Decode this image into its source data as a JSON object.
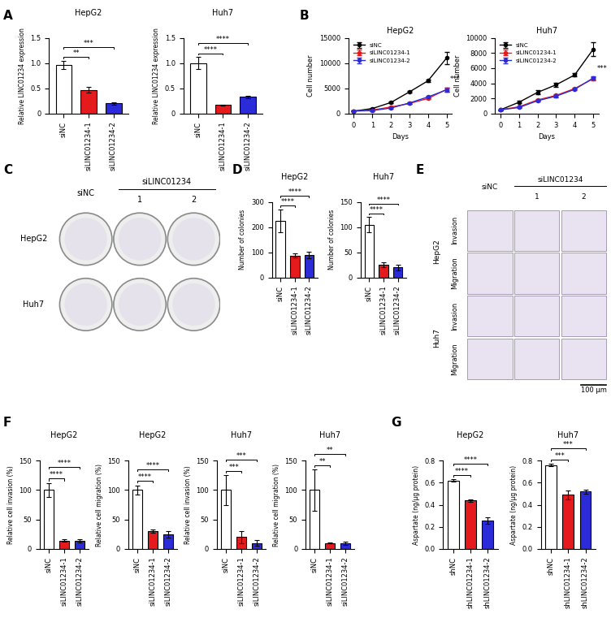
{
  "chart_data": [
    {
      "panel": "A",
      "charts": [
        {
          "type": "bar",
          "title": "HepG2",
          "y_label": "Relative LINC01234 expression",
          "categories": [
            "siNC",
            "siLINC01234-1",
            "siLINC01234-2"
          ],
          "values": [
            0.97,
            0.47,
            0.2
          ],
          "errors": [
            0.08,
            0.06,
            0.03
          ],
          "colors": [
            "#ffffff",
            "#e41a1c",
            "#2b2bd9"
          ],
          "ylim": [
            0,
            1.5
          ],
          "yticks": [
            0,
            0.5,
            {
              "value": 1,
              "label": "1.0"
            },
            1.5
          ],
          "comparisons": [
            {
              "groups": [
                "siNC",
                "siLINC01234-1"
              ],
              "label": "**"
            },
            {
              "groups": [
                "siNC",
                "siLINC01234-2"
              ],
              "label": "***"
            }
          ]
        },
        {
          "type": "bar",
          "title": "Huh7",
          "y_label": "Relative LINC01234 expression",
          "categories": [
            "siNC",
            "siLINC01234-1",
            "siLINC01234-2"
          ],
          "values": [
            1.0,
            0.17,
            0.33
          ],
          "errors": [
            0.12,
            0.01,
            0.02
          ],
          "colors": [
            "#ffffff",
            "#e41a1c",
            "#2b2bd9"
          ],
          "ylim": [
            0,
            1.5
          ],
          "yticks": [
            0,
            0.5,
            {
              "value": 1,
              "label": "1.0"
            },
            1.5
          ],
          "comparisons": [
            {
              "groups": [
                "siNC",
                "siLINC01234-1"
              ],
              "label": "****"
            },
            {
              "groups": [
                "siNC",
                "siLINC01234-2"
              ],
              "label": "****"
            }
          ]
        }
      ]
    },
    {
      "panel": "B",
      "charts": [
        {
          "type": "line",
          "title": "HepG2",
          "x_label": "Days",
          "y_label": "Cell number",
          "legend": "upper left",
          "x": [
            0,
            1,
            2,
            3,
            4,
            5
          ],
          "xlim": [
            -0.3,
            5.3
          ],
          "xticks": [
            0,
            1,
            2,
            3,
            4,
            5
          ],
          "ylim": [
            0,
            15000
          ],
          "yticks": [
            0,
            5000,
            10000,
            15000
          ],
          "series": [
            {
              "name": "siNC",
              "color": "#000000",
              "marker": "o",
              "values": [
                500,
                1000,
                2200,
                4300,
                6500,
                11000
              ],
              "errors": [
                50,
                100,
                150,
                200,
                300,
                1200
              ]
            },
            {
              "name": "siLINC01234-1",
              "color": "#e41a1c",
              "marker": "o",
              "values": [
                500,
                700,
                1300,
                2000,
                3000,
                4800
              ],
              "errors": [
                50,
                80,
                100,
                150,
                200,
                400
              ]
            },
            {
              "name": "siLINC01234-2",
              "color": "#2b2bd9",
              "marker": "o",
              "values": [
                500,
                600,
                1100,
                2100,
                3300,
                4700
              ],
              "errors": [
                50,
                80,
                100,
                150,
                200,
                400
              ]
            }
          ],
          "annotation": {
            "text": "***",
            "x": 5
          }
        },
        {
          "type": "line",
          "title": "Huh7",
          "x_label": "Days",
          "y_label": "Cell number",
          "legend": "upper left",
          "x": [
            0,
            1,
            2,
            3,
            4,
            5
          ],
          "xlim": [
            -0.3,
            5.3
          ],
          "xticks": [
            0,
            1,
            2,
            3,
            4,
            5
          ],
          "ylim": [
            0,
            10000
          ],
          "yticks": [
            0,
            2000,
            4000,
            6000,
            8000,
            10000
          ],
          "series": [
            {
              "name": "siNC",
              "color": "#000000",
              "marker": "o",
              "values": [
                500,
                1500,
                2800,
                3800,
                5100,
                8500
              ],
              "errors": [
                50,
                150,
                250,
                250,
                200,
                900
              ]
            },
            {
              "name": "siLINC01234-1",
              "color": "#e41a1c",
              "marker": "o",
              "values": [
                500,
                900,
                1800,
                2400,
                3300,
                4600
              ],
              "errors": [
                50,
                80,
                100,
                150,
                150,
                200
              ]
            },
            {
              "name": "siLINC01234-2",
              "color": "#2b2bd9",
              "marker": "o",
              "values": [
                500,
                800,
                1700,
                2300,
                3200,
                4700
              ],
              "errors": [
                50,
                80,
                100,
                150,
                150,
                200
              ]
            }
          ],
          "annotation": {
            "text": "***",
            "x": 5
          }
        }
      ]
    },
    {
      "panel": "C",
      "charts": [
        {
          "type": "image_grid",
          "kind": "plates",
          "row_labels": [
            "HepG2",
            "Huh7"
          ],
          "column_labels": [
            "siNC"
          ],
          "group_label": "siLINC01234",
          "group_sublabels": [
            "1",
            "2"
          ]
        }
      ]
    },
    {
      "panel": "D",
      "charts": [
        {
          "type": "bar",
          "title": "HepG2",
          "y_label": "Number of colonies",
          "categories": [
            "siNC",
            "siLINC01234-1",
            "siLINC01234-2"
          ],
          "values": [
            225,
            88,
            90
          ],
          "errors": [
            45,
            8,
            12
          ],
          "colors": [
            "#ffffff",
            "#e41a1c",
            "#2b2bd9"
          ],
          "ylim": [
            0,
            300
          ],
          "yticks": [
            0,
            100,
            200,
            300
          ],
          "comparisons": [
            {
              "groups": [
                "siNC",
                "siLINC01234-1"
              ],
              "label": "****"
            },
            {
              "groups": [
                "siNC",
                "siLINC01234-2"
              ],
              "label": "****"
            }
          ]
        },
        {
          "type": "bar",
          "title": "Huh7",
          "y_label": "Number of colonies",
          "categories": [
            "siNC",
            "siLINC01234-1",
            "siLINC01234-2"
          ],
          "values": [
            105,
            25,
            20
          ],
          "errors": [
            15,
            5,
            5
          ],
          "colors": [
            "#ffffff",
            "#e41a1c",
            "#2b2bd9"
          ],
          "ylim": [
            0,
            150
          ],
          "yticks": [
            0,
            50,
            100,
            150
          ],
          "comparisons": [
            {
              "groups": [
                "siNC",
                "siLINC01234-1"
              ],
              "label": "****"
            },
            {
              "groups": [
                "siNC",
                "siLINC01234-2"
              ],
              "label": "****"
            }
          ]
        }
      ]
    },
    {
      "panel": "E",
      "charts": [
        {
          "type": "image_grid",
          "kind": "micrographs",
          "row_groups": [
            {
              "label": "HepG2",
              "rows": [
                "Invasion",
                "Migration"
              ]
            },
            {
              "label": "Huh7",
              "rows": [
                "Invasion",
                "Migration"
              ]
            }
          ],
          "column_labels": [
            "siNC"
          ],
          "group_label": "siLINC01234",
          "group_sublabels": [
            "1",
            "2"
          ],
          "scale_bar": "100 µm"
        }
      ]
    },
    {
      "panel": "F",
      "charts": [
        {
          "type": "bar",
          "title": "HepG2",
          "y_label": "Relative cell invasion (%)",
          "categories": [
            "siNC",
            "siLINC01234-1",
            "siLINC01234-2"
          ],
          "values": [
            100,
            14,
            14
          ],
          "errors": [
            12,
            2,
            3
          ],
          "colors": [
            "#ffffff",
            "#e41a1c",
            "#2b2bd9"
          ],
          "ylim": [
            0,
            150
          ],
          "yticks": [
            0,
            50,
            100,
            150
          ],
          "comparisons": [
            {
              "groups": [
                "siNC",
                "siLINC01234-1"
              ],
              "label": "****"
            },
            {
              "groups": [
                "siNC",
                "siLINC01234-2"
              ],
              "label": "****"
            }
          ]
        },
        {
          "type": "bar",
          "title": "HepG2",
          "y_label": "Relative cell migration (%)",
          "categories": [
            "siNC",
            "siLINC01234-1",
            "siLINC01234-2"
          ],
          "values": [
            100,
            30,
            25
          ],
          "errors": [
            8,
            3,
            6
          ],
          "colors": [
            "#ffffff",
            "#e41a1c",
            "#2b2bd9"
          ],
          "ylim": [
            0,
            150
          ],
          "yticks": [
            0,
            50,
            100,
            150
          ],
          "comparisons": [
            {
              "groups": [
                "siNC",
                "siLINC01234-1"
              ],
              "label": "****"
            },
            {
              "groups": [
                "siNC",
                "siLINC01234-2"
              ],
              "label": "****"
            }
          ]
        },
        {
          "type": "bar",
          "title": "Huh7",
          "y_label": "Relative cell invasion (%)",
          "categories": [
            "siNC",
            "siLINC01234-1",
            "siLINC01234-2"
          ],
          "values": [
            100,
            20,
            10
          ],
          "errors": [
            25,
            10,
            5
          ],
          "colors": [
            "#ffffff",
            "#e41a1c",
            "#2b2bd9"
          ],
          "ylim": [
            0,
            150
          ],
          "yticks": [
            0,
            50,
            100,
            150
          ],
          "comparisons": [
            {
              "groups": [
                "siNC",
                "siLINC01234-1"
              ],
              "label": "***"
            },
            {
              "groups": [
                "siNC",
                "siLINC01234-2"
              ],
              "label": "***"
            }
          ]
        },
        {
          "type": "bar",
          "title": "Huh7",
          "y_label": "Relative cell migration (%)",
          "categories": [
            "siNC",
            "siLINC01234-1",
            "siLINC01234-2"
          ],
          "values": [
            100,
            10,
            10
          ],
          "errors": [
            35,
            1,
            3
          ],
          "colors": [
            "#ffffff",
            "#e41a1c",
            "#2b2bd9"
          ],
          "ylim": [
            0,
            150
          ],
          "yticks": [
            0,
            50,
            100,
            150
          ],
          "comparisons": [
            {
              "groups": [
                "siNC",
                "siLINC01234-1"
              ],
              "label": "**"
            },
            {
              "groups": [
                "siNC",
                "siLINC01234-2"
              ],
              "label": "**"
            }
          ]
        }
      ]
    },
    {
      "panel": "G",
      "charts": [
        {
          "type": "bar",
          "title": "HepG2",
          "y_label": "Aspartate (ng/µg protein)",
          "categories": [
            "shNC",
            "shLINC01234-1",
            "shLINC01234-2"
          ],
          "values": [
            0.62,
            0.44,
            0.26
          ],
          "errors": [
            0.01,
            0.01,
            0.03
          ],
          "colors": [
            "#ffffff",
            "#e41a1c",
            "#2b2bd9"
          ],
          "ylim": [
            0,
            0.8
          ],
          "yticks": [
            {
              "value": 0,
              "label": "0.0"
            },
            0.2,
            0.4,
            0.6,
            0.8
          ],
          "comparisons": [
            {
              "groups": [
                "shNC",
                "shLINC01234-1"
              ],
              "label": "****"
            },
            {
              "groups": [
                "shNC",
                "shLINC01234-2"
              ],
              "label": "****"
            }
          ]
        },
        {
          "type": "bar",
          "title": "Huh7",
          "y_label": "Aspartate (ng/µg protein)",
          "categories": [
            "shNC",
            "shLINC01234-1",
            "shLINC01234-2"
          ],
          "values": [
            0.76,
            0.49,
            0.52
          ],
          "errors": [
            0.01,
            0.04,
            0.02
          ],
          "colors": [
            "#ffffff",
            "#e41a1c",
            "#2b2bd9"
          ],
          "ylim": [
            0,
            0.8
          ],
          "yticks": [
            {
              "value": 0,
              "label": "0.0"
            },
            0.2,
            0.4,
            0.6,
            0.8
          ],
          "comparisons": [
            {
              "groups": [
                "shNC",
                "shLINC01234-1"
              ],
              "label": "***"
            },
            {
              "groups": [
                "shNC",
                "shLINC01234-2"
              ],
              "label": "***"
            }
          ]
        }
      ]
    }
  ]
}
